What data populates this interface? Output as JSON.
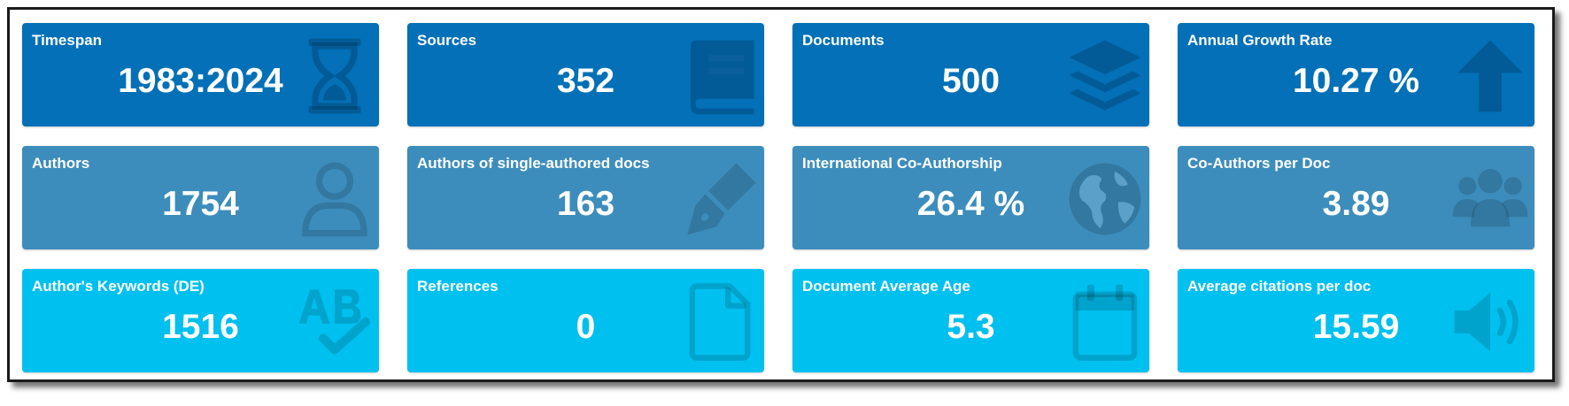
{
  "boxes": [
    {
      "label": "Timespan",
      "value": "1983:2024",
      "icon": "hourglass-icon",
      "color": "#0370b7"
    },
    {
      "label": "Sources",
      "value": "352",
      "icon": "book-icon",
      "color": "#0370b7"
    },
    {
      "label": "Documents",
      "value": "500",
      "icon": "layers-icon",
      "color": "#0370b7"
    },
    {
      "label": "Annual Growth Rate",
      "value": "10.27 %",
      "icon": "arrow-up-icon",
      "color": "#0370b7"
    },
    {
      "label": "Authors",
      "value": "1754",
      "icon": "user-icon",
      "color": "#3c8dbc"
    },
    {
      "label": "Authors of single-authored docs",
      "value": "163",
      "icon": "pen-nib-icon",
      "color": "#3c8dbc"
    },
    {
      "label": "International Co-Authorship",
      "value": "26.4 %",
      "icon": "globe-icon",
      "color": "#3c8dbc"
    },
    {
      "label": "Co-Authors per Doc",
      "value": "3.89",
      "icon": "users-icon",
      "color": "#3c8dbc"
    },
    {
      "label": "Author's Keywords (DE)",
      "value": "1516",
      "icon": "spell-check-icon",
      "color": "#00c0ef"
    },
    {
      "label": "References",
      "value": "0",
      "icon": "file-icon",
      "color": "#00c0ef"
    },
    {
      "label": "Document Average Age",
      "value": "5.3",
      "icon": "calendar-icon",
      "color": "#00c0ef"
    },
    {
      "label": "Average citations per doc",
      "value": "15.59",
      "icon": "volume-icon",
      "color": "#00c0ef"
    }
  ]
}
